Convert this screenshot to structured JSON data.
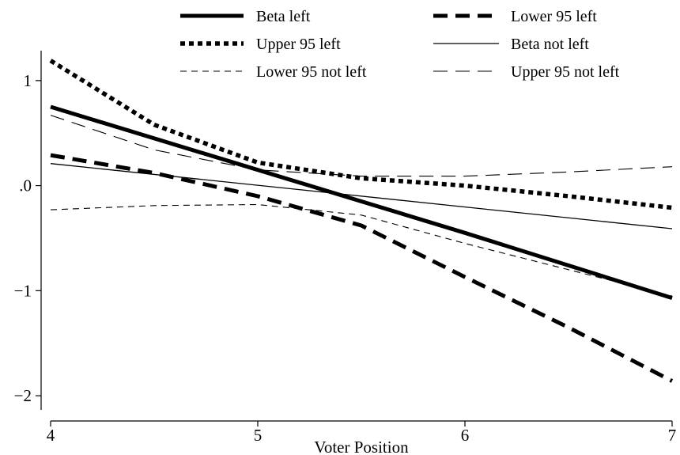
{
  "chart_data": {
    "type": "line",
    "title": "",
    "xlabel": "Voter Position",
    "ylabel": "",
    "xlim": [
      4,
      7
    ],
    "ylim": [
      -2.15,
      1.3
    ],
    "x_ticks": [
      {
        "value": 4,
        "label": "4"
      },
      {
        "value": 5,
        "label": "5"
      },
      {
        "value": 6,
        "label": "6"
      },
      {
        "value": 7,
        "label": "7"
      }
    ],
    "y_ticks": [
      {
        "value": 1,
        "label": "1"
      },
      {
        "value": 0,
        "label": ".0"
      },
      {
        "value": -1,
        "label": "−1"
      },
      {
        "value": -2,
        "label": "−2"
      }
    ],
    "grid": false,
    "legend_position": "top",
    "series": [
      {
        "name": "Beta left",
        "style": "thick-solid",
        "color": "#000000",
        "x": [
          4,
          5,
          6,
          7
        ],
        "y": [
          0.75,
          0.15,
          -0.45,
          -1.07
        ]
      },
      {
        "name": "Lower 95 left",
        "style": "thick-dashed",
        "color": "#000000",
        "x": [
          4,
          4.5,
          5,
          5.5,
          6,
          6.5,
          7
        ],
        "y": [
          0.29,
          0.12,
          -0.1,
          -0.38,
          -0.87,
          -1.35,
          -1.86
        ]
      },
      {
        "name": "Upper 95 left",
        "style": "thick-dotted",
        "color": "#000000",
        "x": [
          4,
          4.5,
          5,
          5.5,
          6,
          6.5,
          7
        ],
        "y": [
          1.19,
          0.58,
          0.22,
          0.07,
          0.0,
          -0.1,
          -0.21
        ]
      },
      {
        "name": "Beta not left",
        "style": "thin-solid",
        "color": "#000000",
        "x": [
          4,
          7
        ],
        "y": [
          0.21,
          -0.41
        ]
      },
      {
        "name": "Lower 95 not left",
        "style": "thin-dashed",
        "color": "#000000",
        "x": [
          4,
          4.5,
          5,
          5.5,
          6,
          6.5,
          7
        ],
        "y": [
          -0.23,
          -0.19,
          -0.18,
          -0.28,
          -0.55,
          -0.8,
          -1.05
        ]
      },
      {
        "name": "Upper 95 not left",
        "style": "thin-longdash",
        "color": "#000000",
        "x": [
          4,
          4.5,
          5,
          5.5,
          6,
          6.5,
          7
        ],
        "y": [
          0.67,
          0.34,
          0.15,
          0.09,
          0.09,
          0.13,
          0.18
        ]
      }
    ]
  }
}
